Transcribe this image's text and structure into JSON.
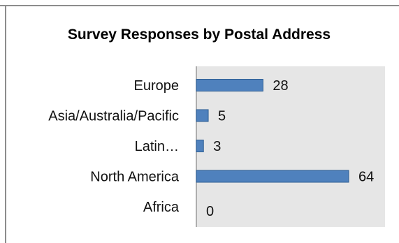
{
  "chart_data": {
    "type": "bar",
    "orientation": "horizontal",
    "title": "Survey Responses by Postal Address",
    "categories": [
      "Europe",
      "Asia/Australia/Pacific",
      "Latin…",
      "North America",
      "Africa"
    ],
    "values": [
      28,
      5,
      3,
      64,
      0
    ],
    "xlim": [
      0,
      70
    ],
    "grid": false,
    "legend": "none",
    "colors": {
      "bar_fill": "#4f81bd",
      "bar_stroke": "#2c5d93",
      "plot_background": "#e6e6e6",
      "axis": "#999999",
      "frame": "#8c8c8c"
    }
  }
}
